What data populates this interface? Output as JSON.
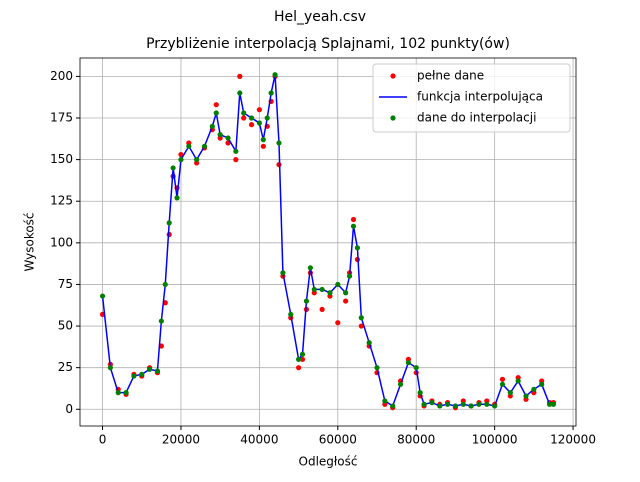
{
  "chart_data": {
    "type": "line",
    "suptitle": "Hel_yeah.csv",
    "title": "Przybliżenie interpolacją Splajnami, 102 punkty(ów)",
    "xlabel": "Odległość",
    "ylabel": "Wysokość",
    "x": [
      0,
      2000,
      4000,
      6000,
      8000,
      10000,
      12000,
      14000,
      15000,
      16000,
      17000,
      18000,
      19000,
      20000,
      22000,
      24000,
      26000,
      28000,
      29000,
      30000,
      32000,
      34000,
      35000,
      36000,
      38000,
      40000,
      41000,
      42000,
      43000,
      44000,
      45000,
      46000,
      48000,
      50000,
      51000,
      52000,
      53000,
      54000,
      56000,
      58000,
      60000,
      62000,
      63000,
      64000,
      65000,
      66000,
      68000,
      70000,
      72000,
      74000,
      76000,
      78000,
      80000,
      81000,
      82000,
      84000,
      86000,
      88000,
      90000,
      92000,
      94000,
      96000,
      98000,
      100000,
      102000,
      104000,
      106000,
      108000,
      110000,
      112000,
      114000,
      115000
    ],
    "series": [
      {
        "name": "pełne dane",
        "color": "#ff0000",
        "style": "markers",
        "values": [
          57,
          27,
          12,
          9,
          21,
          20,
          25,
          22,
          38,
          64,
          105,
          140,
          133,
          153,
          160,
          148,
          157,
          168,
          183,
          163,
          160,
          150,
          200,
          175,
          171,
          180,
          158,
          170,
          185,
          200,
          147,
          80,
          55,
          25,
          30,
          60,
          82,
          70,
          60,
          68,
          52,
          65,
          82,
          114,
          90,
          50,
          38,
          22,
          3,
          1,
          17,
          30,
          22,
          8,
          2,
          5,
          3,
          4,
          1,
          5,
          2,
          4,
          5,
          3,
          18,
          8,
          19,
          6,
          10,
          17,
          4,
          4
        ]
      },
      {
        "name": "funkcja interpolująca",
        "color": "#0000ff",
        "style": "line",
        "values": [
          68,
          25,
          10,
          10,
          20,
          21,
          24,
          23,
          53,
          75,
          112,
          145,
          127,
          150,
          158,
          150,
          158,
          170,
          178,
          165,
          163,
          155,
          190,
          178,
          175,
          172,
          162,
          175,
          190,
          201,
          160,
          82,
          57,
          30,
          33,
          65,
          85,
          72,
          72,
          70,
          75,
          70,
          80,
          110,
          97,
          55,
          40,
          25,
          5,
          2,
          15,
          28,
          25,
          10,
          3,
          4,
          2,
          3,
          2,
          3,
          2,
          3,
          3,
          2,
          15,
          10,
          17,
          8,
          12,
          15,
          3,
          3
        ]
      },
      {
        "name": "dane do interpolacji",
        "color": "#008000",
        "style": "markers",
        "values": [
          68,
          25,
          10,
          10,
          20,
          21,
          24,
          23,
          53,
          75,
          112,
          145,
          127,
          150,
          158,
          150,
          158,
          170,
          178,
          165,
          163,
          155,
          190,
          178,
          175,
          172,
          162,
          175,
          190,
          201,
          160,
          82,
          57,
          30,
          33,
          65,
          85,
          72,
          72,
          70,
          75,
          70,
          80,
          110,
          97,
          55,
          40,
          25,
          5,
          2,
          15,
          28,
          25,
          10,
          3,
          4,
          2,
          3,
          2,
          3,
          2,
          3,
          3,
          2,
          15,
          10,
          17,
          8,
          12,
          15,
          3,
          3
        ]
      }
    ],
    "xlim": [
      -5750,
      120750
    ],
    "ylim": [
      -10.05,
      211.05
    ],
    "xticks": [
      0,
      20000,
      40000,
      60000,
      80000,
      100000,
      120000
    ],
    "yticks": [
      0,
      25,
      50,
      75,
      100,
      125,
      150,
      175,
      200
    ],
    "grid": true,
    "legend": "upper right"
  }
}
